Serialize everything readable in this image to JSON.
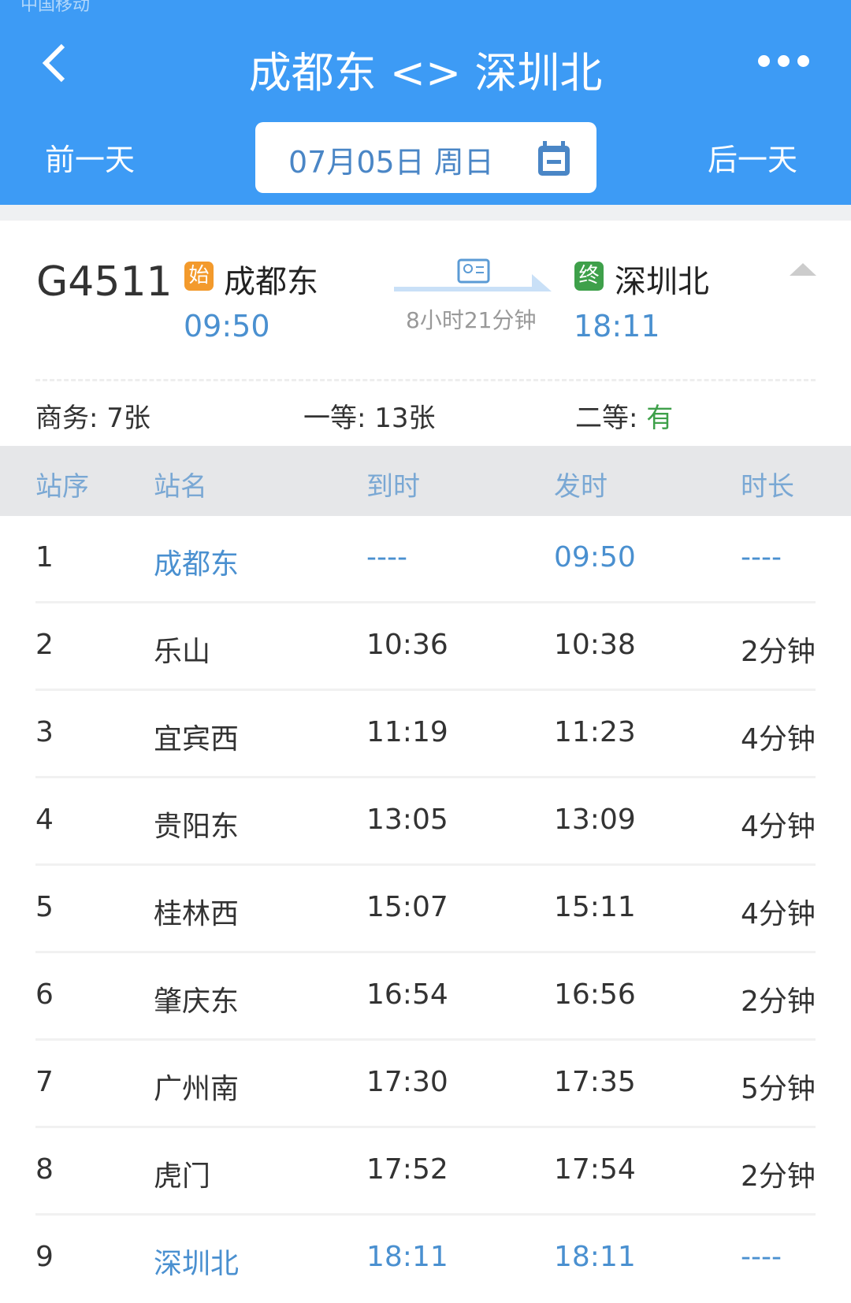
{
  "status_bar": {
    "carrier": "中国移动"
  },
  "header": {
    "title": "成都东 <> 深圳北",
    "prev_day": "前一天",
    "next_day": "后一天",
    "date": "07月05日 周日",
    "icons": [
      "back-chevron-icon",
      "more-dots-icon",
      "calendar-icon"
    ],
    "color": "#3d9bf5"
  },
  "train": {
    "number": "G4511",
    "from_badge": "始",
    "from": "成都东",
    "depart": "09:50",
    "duration": "8小时21分钟",
    "to_badge": "终",
    "to": "深圳北",
    "arrive": "18:11",
    "seats": [
      {
        "label": "商务: ",
        "value": "7张"
      },
      {
        "label": "一等: ",
        "value": "13张"
      },
      {
        "label": "二等: ",
        "value": "有"
      }
    ]
  },
  "table": {
    "headers": [
      "站序",
      "站名",
      "到时",
      "发时",
      "时长"
    ],
    "rows": [
      [
        "1",
        "成都东",
        "----",
        "09:50",
        "----"
      ],
      [
        "2",
        "乐山",
        "10:36",
        "10:38",
        "2分钟"
      ],
      [
        "3",
        "宜宾西",
        "11:19",
        "11:23",
        "4分钟"
      ],
      [
        "4",
        "贵阳东",
        "13:05",
        "13:09",
        "4分钟"
      ],
      [
        "5",
        "桂林西",
        "15:07",
        "15:11",
        "4分钟"
      ],
      [
        "6",
        "肇庆东",
        "16:54",
        "16:56",
        "2分钟"
      ],
      [
        "7",
        "广州南",
        "17:30",
        "17:35",
        "5分钟"
      ],
      [
        "8",
        "虎门",
        "17:52",
        "17:54",
        "2分钟"
      ],
      [
        "9",
        "深圳北",
        "18:11",
        "18:11",
        "----"
      ]
    ]
  }
}
